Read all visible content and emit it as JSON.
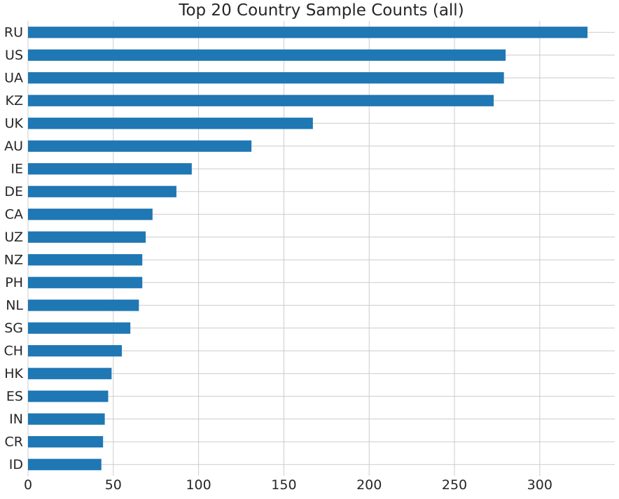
{
  "chart_data": {
    "type": "bar",
    "orientation": "horizontal",
    "title": "Top 20 Country Sample Counts (all)",
    "xlabel": "",
    "ylabel": "",
    "categories": [
      "RU",
      "US",
      "UA",
      "KZ",
      "UK",
      "AU",
      "IE",
      "DE",
      "CA",
      "UZ",
      "NZ",
      "PH",
      "NL",
      "SG",
      "CH",
      "HK",
      "ES",
      "IN",
      "CR",
      "ID"
    ],
    "values": [
      328,
      280,
      279,
      273,
      167,
      131,
      96,
      87,
      73,
      69,
      67,
      67,
      65,
      60,
      55,
      49,
      47,
      45,
      44,
      43
    ],
    "xlim": [
      0,
      344
    ],
    "xticks": [
      0,
      50,
      100,
      150,
      200,
      250,
      300
    ],
    "grid": true,
    "legend": "none",
    "colors": {
      "bar": "#1f77b4",
      "grid": "#cccccc",
      "text": "#262626"
    }
  }
}
